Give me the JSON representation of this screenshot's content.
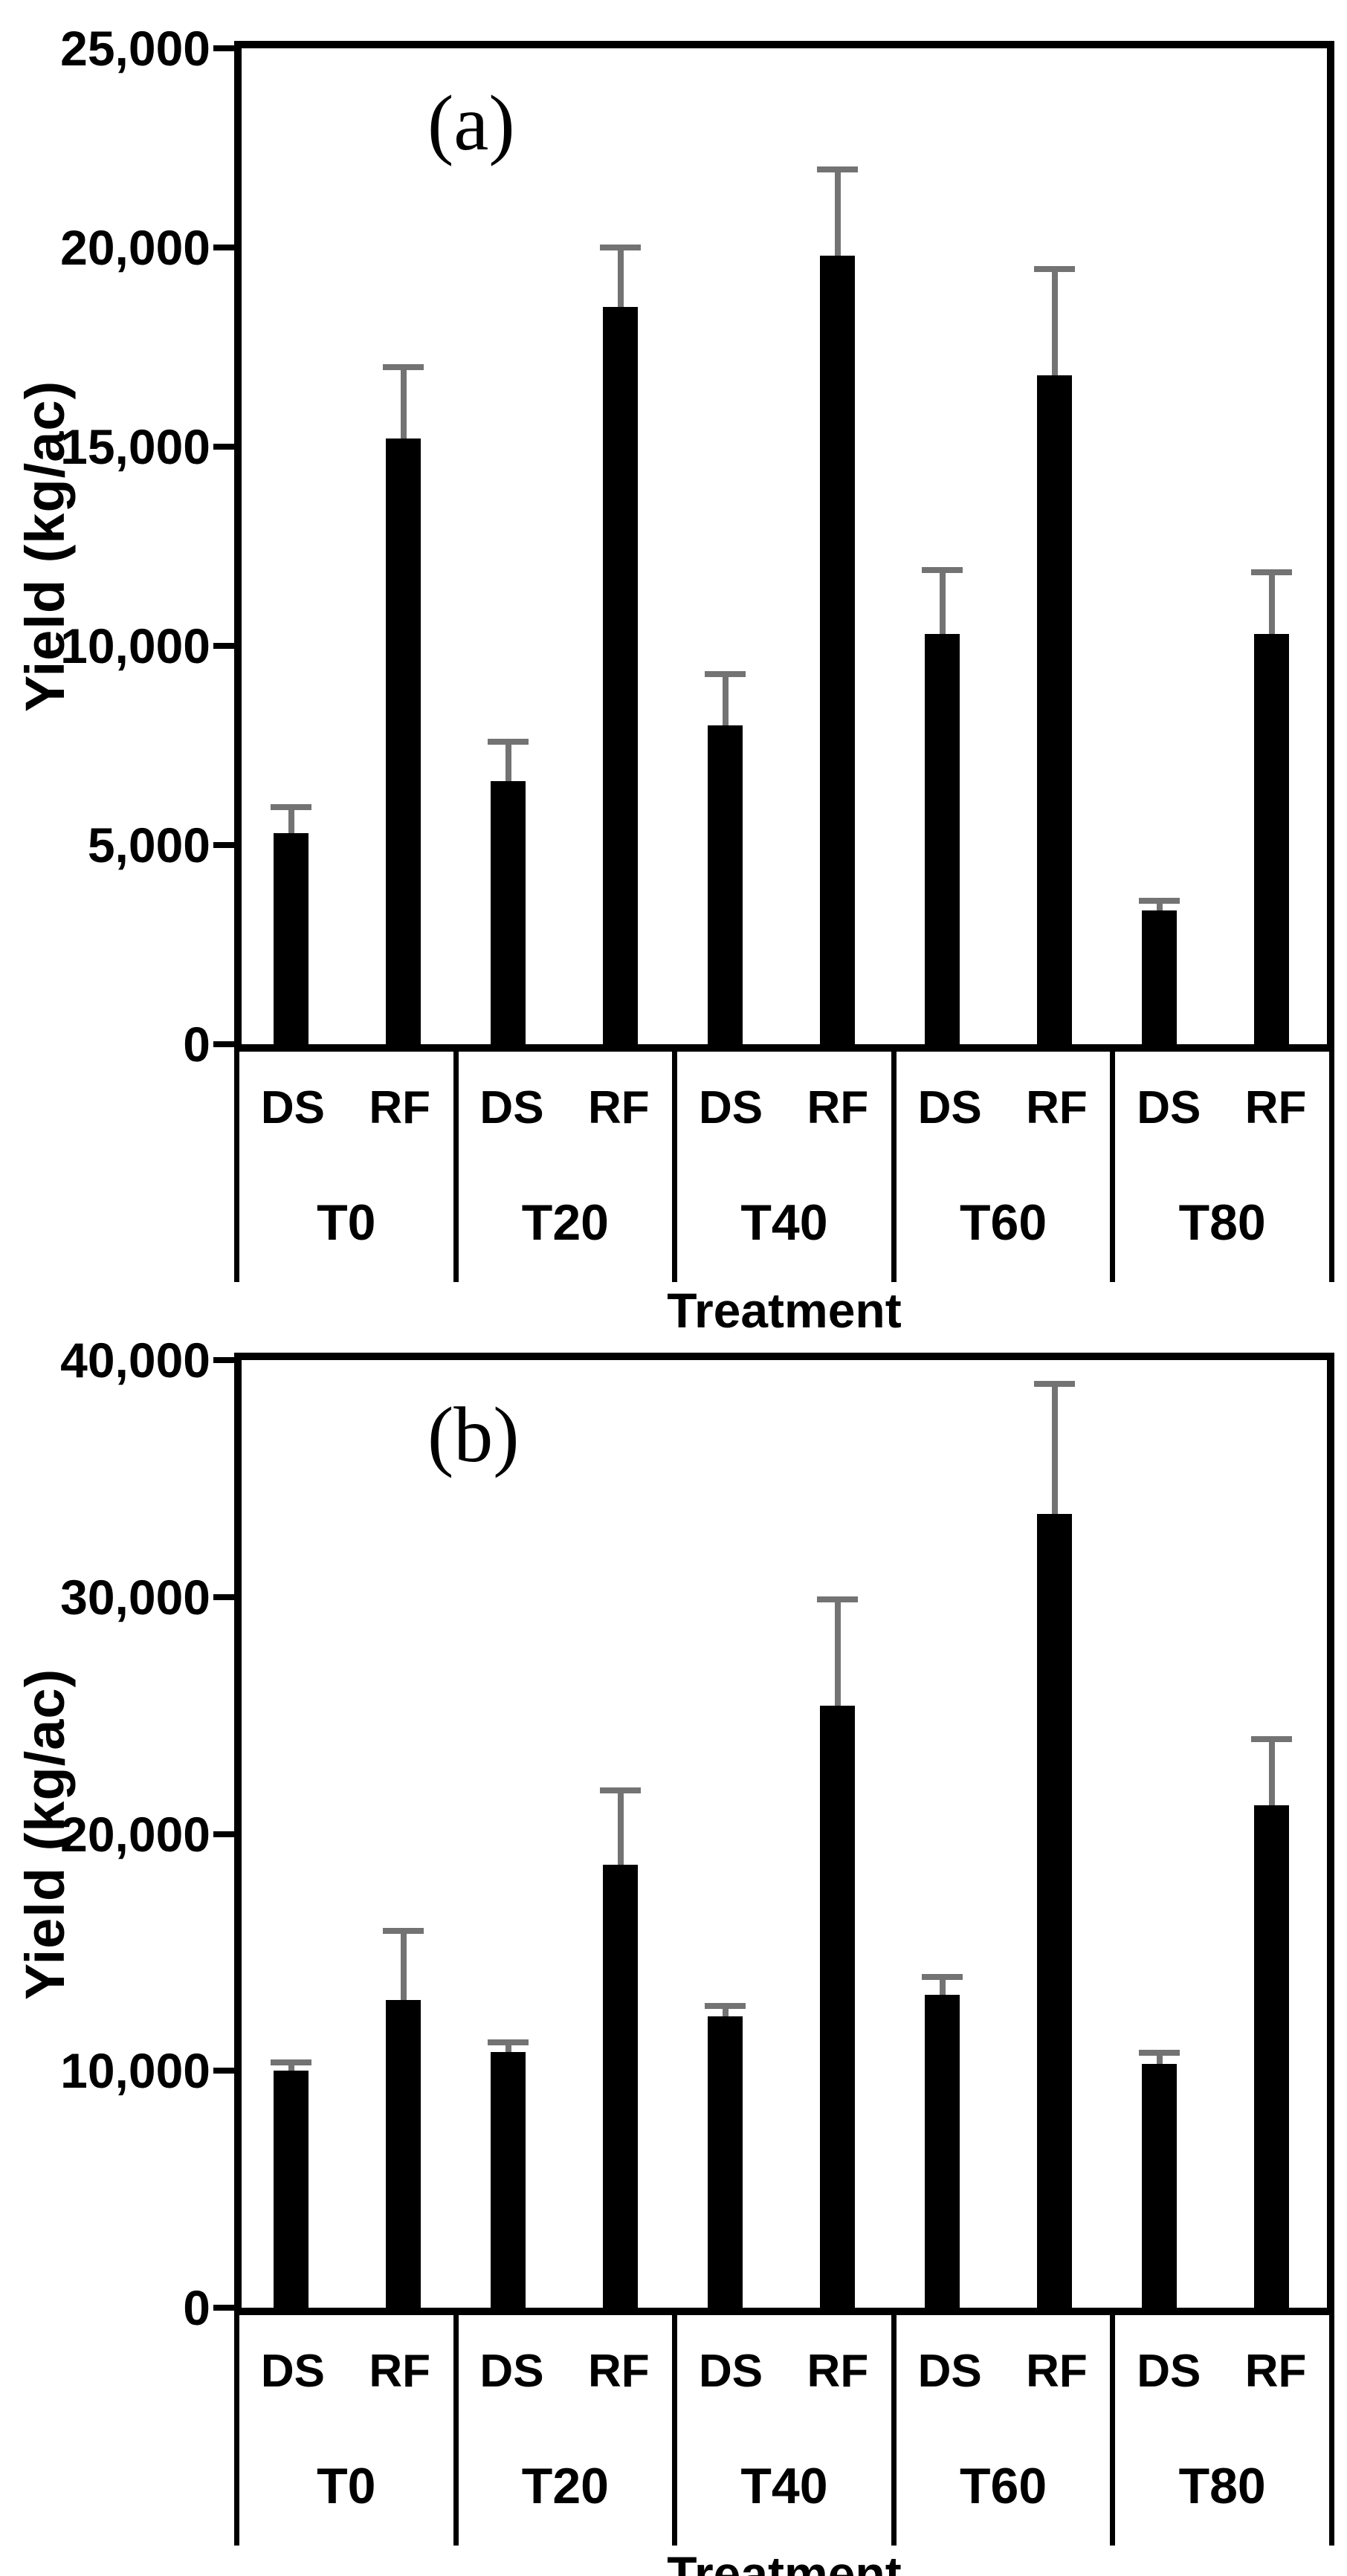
{
  "figure": {
    "background": "#ffffff",
    "series_labels": [
      "DS",
      "RF"
    ],
    "colors": {
      "bar": "#000000",
      "error": "#737373",
      "axis": "#000000",
      "text": "#000000"
    }
  },
  "chart_data": [
    {
      "type": "bar",
      "panel": "(a)",
      "ylabel": "Yield (kg/ac)",
      "xlabel": "Treatment",
      "ylim": [
        0,
        25000
      ],
      "ytick_step": 5000,
      "ytick_labels": [
        "0",
        "5,000",
        "10,000",
        "15,000",
        "20,000",
        "25,000"
      ],
      "categories": [
        "T0",
        "T20",
        "T40",
        "T60",
        "T80"
      ],
      "series": [
        {
          "name": "DS",
          "values": [
            5300,
            6600,
            8000,
            10300,
            3350
          ],
          "errors": [
            650,
            1000,
            1300,
            1600,
            250
          ]
        },
        {
          "name": "RF",
          "values": [
            15200,
            18500,
            19800,
            16800,
            10300
          ],
          "errors": [
            1800,
            1500,
            2150,
            2650,
            1550
          ]
        }
      ],
      "grid": false,
      "legend": false
    },
    {
      "type": "bar",
      "panel": "(b)",
      "ylabel": "Yield (kg/ac)",
      "xlabel": "Treatment",
      "ylim": [
        0,
        40000
      ],
      "ytick_step": 10000,
      "ytick_labels": [
        "0",
        "10,000",
        "20,000",
        "30,000",
        "40,000"
      ],
      "categories": [
        "T0",
        "T20",
        "T40",
        "T60",
        "T80"
      ],
      "series": [
        {
          "name": "DS",
          "values": [
            10000,
            10800,
            12300,
            13200,
            10300
          ],
          "errors": [
            350,
            400,
            450,
            750,
            450
          ]
        },
        {
          "name": "RF",
          "values": [
            13000,
            18700,
            25400,
            33500,
            21200
          ],
          "errors": [
            2900,
            3150,
            4500,
            5500,
            2800
          ]
        }
      ],
      "grid": false,
      "legend": false
    }
  ]
}
